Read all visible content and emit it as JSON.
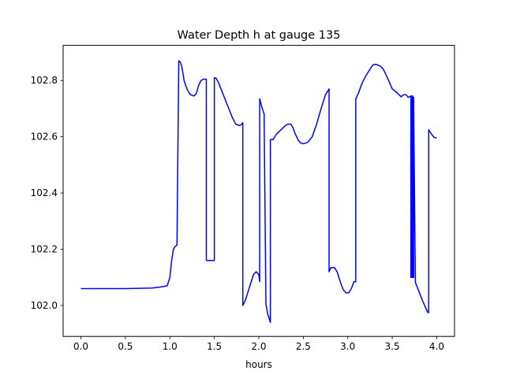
{
  "chart_data": {
    "type": "line",
    "title": "Water Depth h at gauge 135",
    "xlabel": "hours",
    "ylabel": "",
    "xlim": [
      -0.2,
      4.2
    ],
    "ylim": [
      101.89,
      102.925
    ],
    "xticks": [
      0.0,
      0.5,
      1.0,
      1.5,
      2.0,
      2.5,
      3.0,
      3.5,
      4.0
    ],
    "xtick_labels": [
      "0.0",
      "0.5",
      "1.0",
      "1.5",
      "2.0",
      "2.5",
      "3.0",
      "3.5",
      "4.0"
    ],
    "yticks": [
      102.0,
      102.2,
      102.4,
      102.6,
      102.8
    ],
    "ytick_labels": [
      "102.0",
      "102.2",
      "102.4",
      "102.6",
      "102.8"
    ],
    "grid": false,
    "legend": "none",
    "series": [
      {
        "color": "#0000ff",
        "x": [
          0.0,
          0.5,
          0.8,
          0.9,
          0.97,
          1.0,
          1.02,
          1.04,
          1.06,
          1.08,
          1.1,
          1.1,
          1.12,
          1.14,
          1.16,
          1.18,
          1.2,
          1.23,
          1.27,
          1.3,
          1.32,
          1.35,
          1.38,
          1.41,
          1.41,
          1.5,
          1.5,
          1.52,
          1.55,
          1.6,
          1.65,
          1.7,
          1.74,
          1.78,
          1.8,
          1.82,
          1.82,
          1.85,
          1.9,
          1.94,
          1.97,
          2.0,
          2.01,
          2.01,
          2.03,
          2.06,
          2.06,
          2.08,
          2.1,
          2.12,
          2.13,
          2.13,
          2.16,
          2.2,
          2.25,
          2.3,
          2.33,
          2.36,
          2.38,
          2.41,
          2.44,
          2.47,
          2.5,
          2.55,
          2.6,
          2.65,
          2.7,
          2.75,
          2.79,
          2.79,
          2.81,
          2.85,
          2.88,
          2.92,
          2.95,
          2.98,
          3.01,
          3.04,
          3.07,
          3.09,
          3.09,
          3.12,
          3.16,
          3.2,
          3.24,
          3.28,
          3.31,
          3.34,
          3.37,
          3.4,
          3.43,
          3.46,
          3.5,
          3.55,
          3.6,
          3.62,
          3.64,
          3.66,
          3.68,
          3.71,
          3.71,
          3.72,
          3.72,
          3.73,
          3.73,
          3.74,
          3.74,
          3.76,
          3.8,
          3.85,
          3.9,
          3.91,
          3.91,
          3.94,
          3.97,
          4.0
        ],
        "y": [
          102.06,
          102.06,
          102.062,
          102.066,
          102.07,
          102.1,
          102.16,
          102.2,
          102.21,
          102.215,
          102.87,
          102.87,
          102.865,
          102.84,
          102.8,
          102.78,
          102.765,
          102.75,
          102.745,
          102.755,
          102.78,
          102.8,
          102.805,
          102.805,
          102.16,
          102.16,
          102.81,
          102.808,
          102.79,
          102.75,
          102.71,
          102.67,
          102.645,
          102.64,
          102.642,
          102.65,
          102.0,
          102.02,
          102.07,
          102.11,
          102.12,
          102.11,
          102.085,
          102.735,
          102.71,
          102.68,
          102.66,
          102.005,
          101.97,
          101.95,
          101.94,
          102.59,
          102.59,
          102.61,
          102.625,
          102.64,
          102.645,
          102.645,
          102.635,
          102.61,
          102.59,
          102.578,
          102.575,
          102.58,
          102.6,
          102.645,
          102.7,
          102.75,
          102.77,
          102.12,
          102.135,
          102.135,
          102.12,
          102.08,
          102.055,
          102.045,
          102.045,
          102.06,
          102.085,
          102.085,
          102.735,
          102.755,
          102.79,
          102.815,
          102.835,
          102.855,
          102.858,
          102.855,
          102.85,
          102.84,
          102.82,
          102.8,
          102.77,
          102.758,
          102.742,
          102.748,
          102.75,
          102.748,
          102.74,
          102.745,
          102.1,
          102.1,
          102.745,
          102.745,
          102.1,
          102.1,
          102.74,
          102.082,
          102.05,
          102.01,
          101.975,
          101.975,
          102.625,
          102.61,
          102.598,
          102.595
        ]
      }
    ]
  }
}
